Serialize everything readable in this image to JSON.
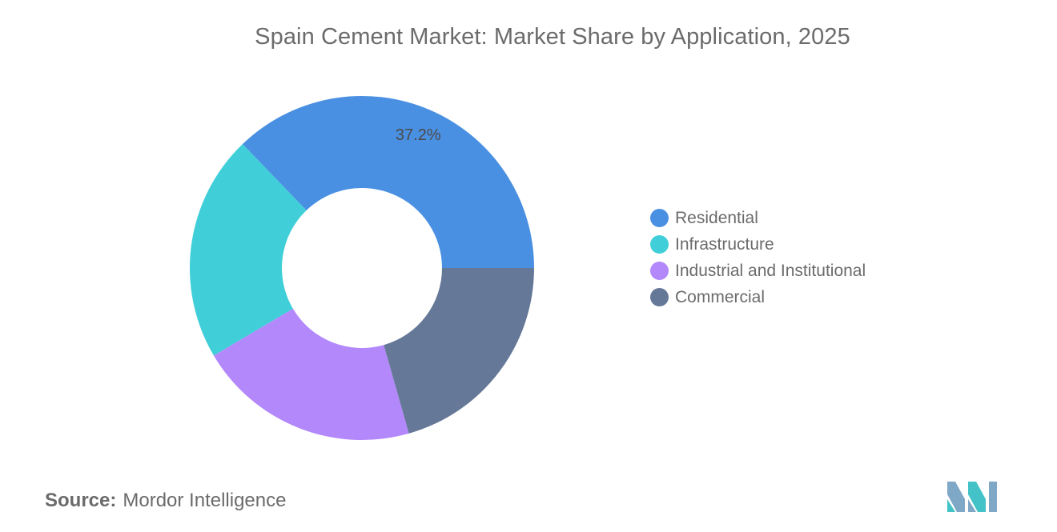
{
  "title": "Spain Cement Market: Market Share by Application, 2025",
  "chart_data": {
    "type": "pie",
    "variant": "donut",
    "series": [
      {
        "name": "Residential",
        "value": 37.2,
        "color": "#4a90e2",
        "label": "37.2%"
      },
      {
        "name": "Infrastructure",
        "value": 21.3,
        "color": "#40cfd8",
        "label": ""
      },
      {
        "name": "Industrial and Institutional",
        "value": 20.9,
        "color": "#b388fb",
        "label": ""
      },
      {
        "name": "Commercial",
        "value": 20.6,
        "color": "#657898",
        "label": ""
      }
    ],
    "legend_position": "right"
  },
  "source": {
    "label": "Source:",
    "text": "Mordor Intelligence"
  },
  "logo": {
    "icon": "mordor-intelligence-logo-icon",
    "colors": [
      "#7fa8c7",
      "#43c3c8"
    ]
  }
}
